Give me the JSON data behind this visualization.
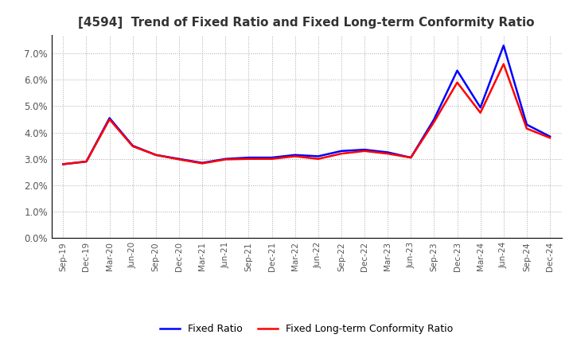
{
  "title": "[4594]  Trend of Fixed Ratio and Fixed Long-term Conformity Ratio",
  "title_fontsize": 11,
  "ylim": [
    0.0,
    0.077
  ],
  "yticks": [
    0.0,
    0.01,
    0.02,
    0.03,
    0.04,
    0.05,
    0.06,
    0.07
  ],
  "fixed_ratio_color": "#0000FF",
  "fixed_lt_color": "#FF0000",
  "line_width": 1.8,
  "legend_labels": [
    "Fixed Ratio",
    "Fixed Long-term Conformity Ratio"
  ],
  "x_labels": [
    "Sep-19",
    "Dec-19",
    "Mar-20",
    "Jun-20",
    "Sep-20",
    "Dec-20",
    "Mar-21",
    "Jun-21",
    "Sep-21",
    "Dec-21",
    "Mar-22",
    "Jun-22",
    "Sep-22",
    "Dec-22",
    "Mar-23",
    "Jun-23",
    "Sep-23",
    "Dec-23",
    "Mar-24",
    "Jun-24",
    "Sep-24",
    "Dec-24"
  ],
  "fixed_ratio": [
    0.028,
    0.029,
    0.0455,
    0.035,
    0.0315,
    0.03,
    0.0285,
    0.03,
    0.0305,
    0.0305,
    0.0315,
    0.031,
    0.033,
    0.0335,
    0.0325,
    0.0305,
    0.045,
    0.0635,
    0.0495,
    0.073,
    0.043,
    0.0385
  ],
  "fixed_lt_ratio": [
    0.028,
    0.029,
    0.045,
    0.0348,
    0.0315,
    0.0298,
    0.0283,
    0.0298,
    0.03,
    0.03,
    0.031,
    0.03,
    0.032,
    0.033,
    0.032,
    0.0305,
    0.044,
    0.059,
    0.0475,
    0.066,
    0.0415,
    0.038
  ],
  "background_color": "#ffffff",
  "plot_bg_color": "#ffffff",
  "grid_color": "#aaaaaa",
  "border_color": "#000000",
  "tick_color": "#555555",
  "title_color": "#333333"
}
